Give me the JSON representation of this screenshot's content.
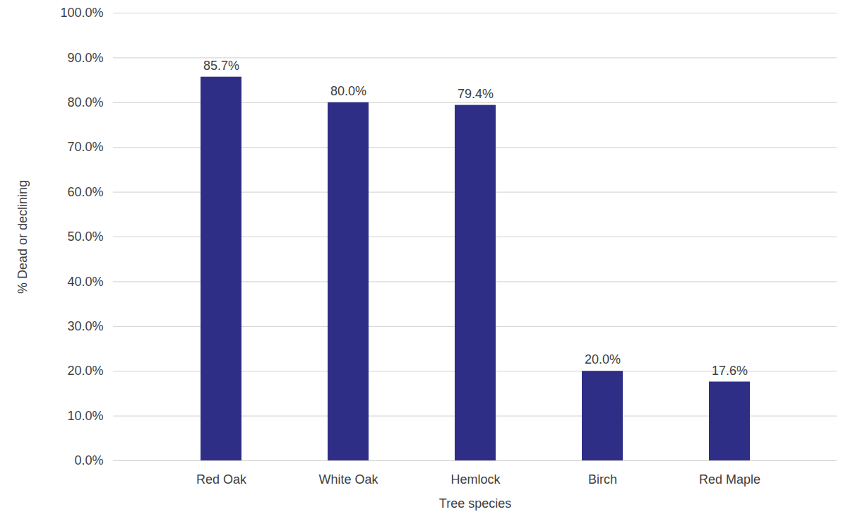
{
  "chart_data": {
    "type": "bar",
    "x_label": "Tree species",
    "y_label": "% Dead or declining",
    "categories": [
      "Red Oak",
      "White Oak",
      "Hemlock",
      "Birch",
      "Red Maple"
    ],
    "values": [
      85.7,
      80,
      79.4,
      20,
      17.6
    ],
    "value_labels": [
      "85.7%",
      "80.0%",
      "79.4%",
      "20.0%",
      "17.6%"
    ],
    "color": "#2e2e87",
    "ylim": [
      0,
      100
    ],
    "yticks": [
      {
        "value": 0,
        "label": "0.0%"
      },
      {
        "value": 10,
        "label": "10.0%"
      },
      {
        "value": 20,
        "label": "20.0%"
      },
      {
        "value": 30,
        "label": "30.0%"
      },
      {
        "value": 40,
        "label": "40.0%"
      },
      {
        "value": 50,
        "label": "50.0%"
      },
      {
        "value": 60,
        "label": "60.0%"
      },
      {
        "value": 70,
        "label": "70.0%"
      },
      {
        "value": 80,
        "label": "80.0%"
      },
      {
        "value": 90,
        "label": "90.0%"
      },
      {
        "value": 100,
        "label": "100.0%"
      }
    ],
    "grid": true,
    "data_labels": true
  }
}
